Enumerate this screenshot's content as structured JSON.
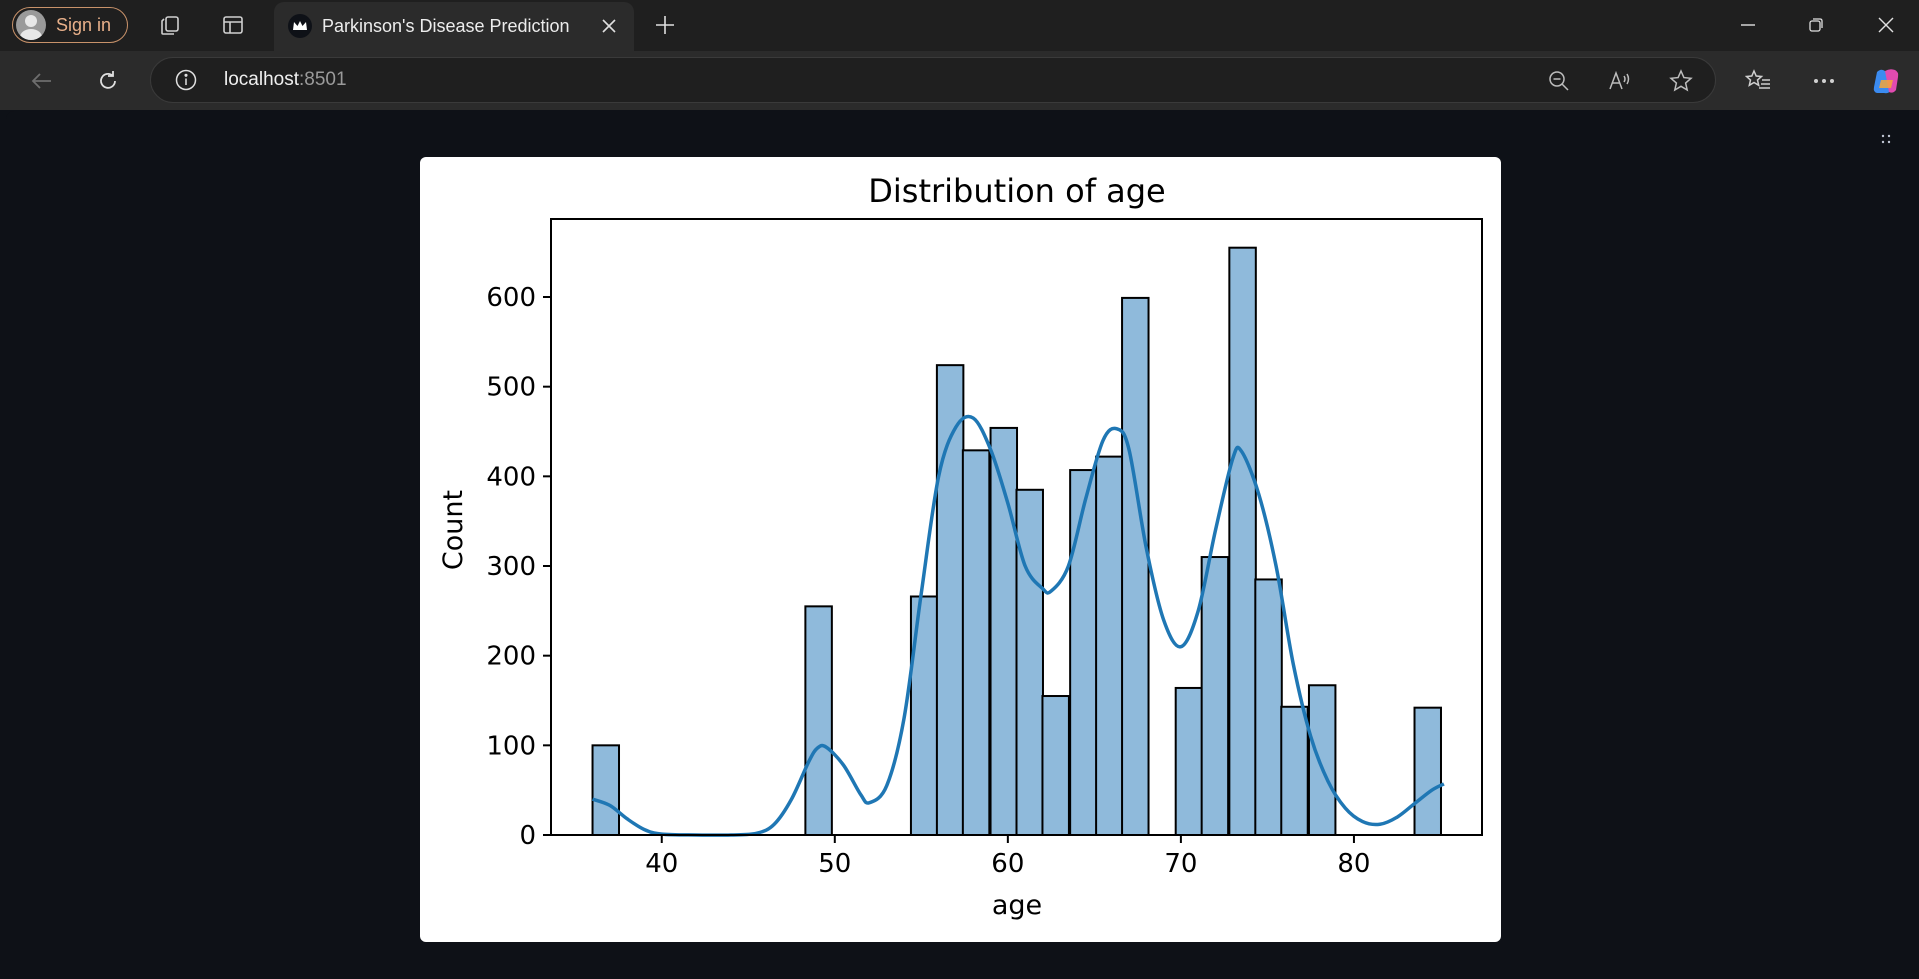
{
  "browser": {
    "sign_in_label": "Sign in",
    "tab": {
      "title": "Parkinson's Disease Prediction"
    },
    "address": {
      "host": "localhost",
      "port": ":8501"
    },
    "icons": {
      "profile": "avatar-icon",
      "workspaces": "workspaces-icon",
      "tab_actions": "tab-actions-icon",
      "favicon": "streamlit-crown-icon",
      "close_tab": "close-icon",
      "new_tab": "plus-icon",
      "minimize": "minimize-icon",
      "restore": "restore-icon",
      "close_window": "close-icon",
      "back": "back-arrow-icon",
      "refresh": "refresh-icon",
      "site_info": "info-icon",
      "zoom_out": "zoom-out-icon",
      "read_aloud": "read-aloud-icon",
      "favorite": "star-icon",
      "favorites": "favorites-list-icon",
      "more": "more-icon",
      "copilot": "copilot-icon"
    },
    "colors": {
      "accent": "#e8b08a",
      "page_bg": "#0e1117"
    }
  },
  "chart_data": {
    "type": "bar",
    "title": "Distribution of age",
    "xlabel": "age",
    "ylabel": "Count",
    "xlim": [
      33.6,
      87.4
    ],
    "ylim": [
      0,
      687
    ],
    "xticks": [
      40,
      50,
      60,
      70,
      80
    ],
    "yticks": [
      0,
      100,
      200,
      300,
      400,
      500,
      600
    ],
    "bin_width": 1.53,
    "bins": [
      {
        "x": 36.0,
        "count": 100
      },
      {
        "x": 48.3,
        "count": 255
      },
      {
        "x": 54.4,
        "count": 266
      },
      {
        "x": 55.9,
        "count": 524
      },
      {
        "x": 57.4,
        "count": 429
      },
      {
        "x": 59.0,
        "count": 454
      },
      {
        "x": 60.5,
        "count": 385
      },
      {
        "x": 62.0,
        "count": 155
      },
      {
        "x": 63.6,
        "count": 407
      },
      {
        "x": 65.1,
        "count": 422
      },
      {
        "x": 66.6,
        "count": 599
      },
      {
        "x": 69.7,
        "count": 164
      },
      {
        "x": 71.2,
        "count": 310
      },
      {
        "x": 72.8,
        "count": 655
      },
      {
        "x": 74.3,
        "count": 285
      },
      {
        "x": 75.8,
        "count": 143
      },
      {
        "x": 77.4,
        "count": 167
      },
      {
        "x": 83.5,
        "count": 142
      }
    ],
    "kde": {
      "x": [
        36.0,
        37.0,
        38.0,
        39.0,
        40.0,
        42.0,
        44.0,
        45.5,
        46.5,
        47.5,
        48.5,
        49.0,
        49.5,
        50.5,
        51.5,
        52.0,
        53.0,
        54.0,
        55.0,
        56.0,
        57.0,
        58.0,
        59.0,
        60.0,
        61.0,
        62.0,
        62.5,
        63.5,
        64.5,
        65.5,
        66.3,
        67.0,
        68.0,
        69.0,
        70.0,
        71.0,
        72.0,
        73.0,
        73.5,
        74.5,
        75.5,
        76.5,
        77.5,
        78.5,
        79.5,
        80.5,
        81.5,
        82.5,
        83.5,
        84.5,
        85.2
      ],
      "y": [
        40,
        33,
        18,
        6,
        1,
        0,
        0,
        2,
        12,
        40,
        82,
        97,
        98,
        78,
        45,
        36,
        55,
        130,
        270,
        400,
        455,
        465,
        430,
        370,
        300,
        275,
        272,
        300,
        375,
        440,
        453,
        430,
        320,
        240,
        210,
        250,
        340,
        420,
        428,
        380,
        300,
        190,
        110,
        60,
        30,
        15,
        12,
        20,
        35,
        50,
        57
      ]
    },
    "bar_fill": "#8fbadb",
    "bar_edge": "#000000",
    "kde_color": "#1f77b4",
    "grid": false,
    "legend": "none"
  }
}
